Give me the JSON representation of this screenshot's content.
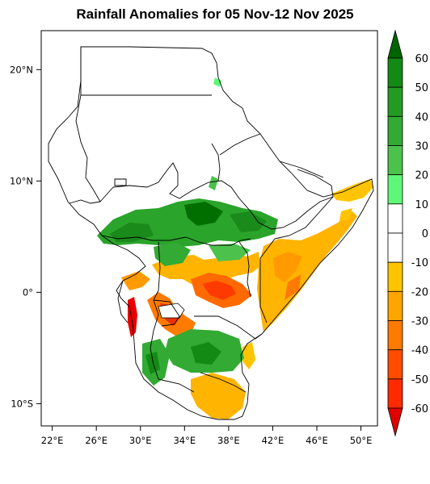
{
  "title": "Rainfall Anomalies for 05 Nov-12 Nov 2025",
  "map": {
    "lon_range": [
      21,
      51.5
    ],
    "lat_range": [
      -12,
      23.5
    ],
    "x_ticks": [
      {
        "lon": 22,
        "label": "22°E"
      },
      {
        "lon": 26,
        "label": "26°E"
      },
      {
        "lon": 30,
        "label": "30°E"
      },
      {
        "lon": 34,
        "label": "34°E"
      },
      {
        "lon": 38,
        "label": "38°E"
      },
      {
        "lon": 42,
        "label": "42°E"
      },
      {
        "lon": 46,
        "label": "46°E"
      },
      {
        "lon": 50,
        "label": "50°E"
      }
    ],
    "y_ticks": [
      {
        "lat": 20,
        "label": "20°N"
      },
      {
        "lat": 10,
        "label": "10°N"
      },
      {
        "lat": 0,
        "label": "0°"
      },
      {
        "lat": -10,
        "label": "10°S"
      }
    ]
  },
  "colorbar": {
    "labels": [
      "60",
      "50",
      "40",
      "30",
      "20",
      "10",
      "0",
      "-10",
      "-20",
      "-30",
      "-40",
      "-50",
      "-60"
    ],
    "colors_top_to_bottom": [
      "#006400",
      "#138a13",
      "#239b23",
      "#33aa33",
      "#4cc24c",
      "#5ff777",
      "#ffffff",
      "#ffffff",
      "#ffc400",
      "#ffa500",
      "#ff7a00",
      "#ff4d00",
      "#ff2a00",
      "#e00000"
    ]
  }
}
